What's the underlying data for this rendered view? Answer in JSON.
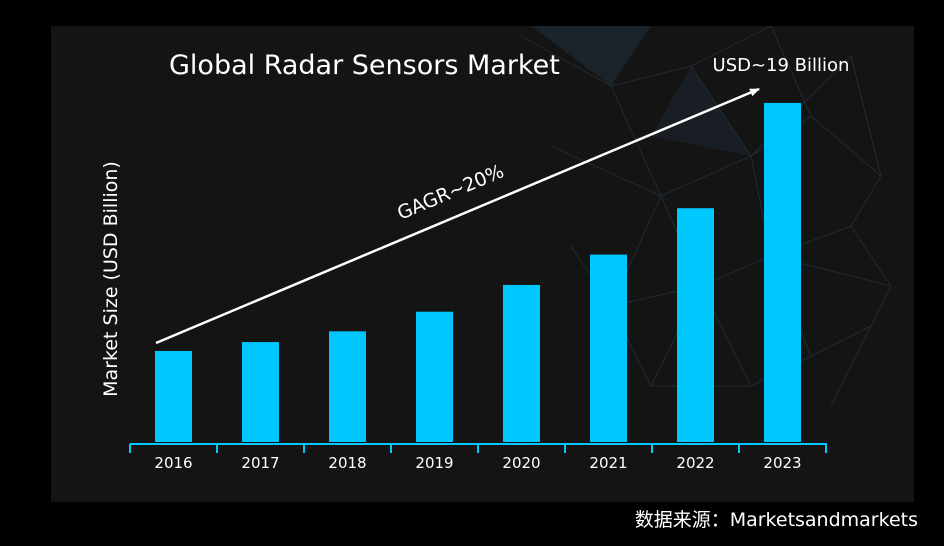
{
  "chart_data": {
    "type": "bar",
    "title": "Global Radar Sensors Market",
    "xlabel": "",
    "ylabel": "Market Size (USD Billion)",
    "categories": [
      "2016",
      "2017",
      "2018",
      "2019",
      "2020",
      "2021",
      "2022",
      "2023"
    ],
    "values": [
      5.1,
      5.6,
      6.2,
      7.3,
      8.8,
      10.5,
      13.1,
      19.0
    ],
    "ylim": [
      0,
      19.5
    ],
    "bar_color": "#00c8ff",
    "grid": false,
    "annotations": {
      "cagr": "GAGR~20%",
      "end_value": "USD~19 Billion"
    }
  },
  "source_text": "数据来源：Marketsandmarkets"
}
